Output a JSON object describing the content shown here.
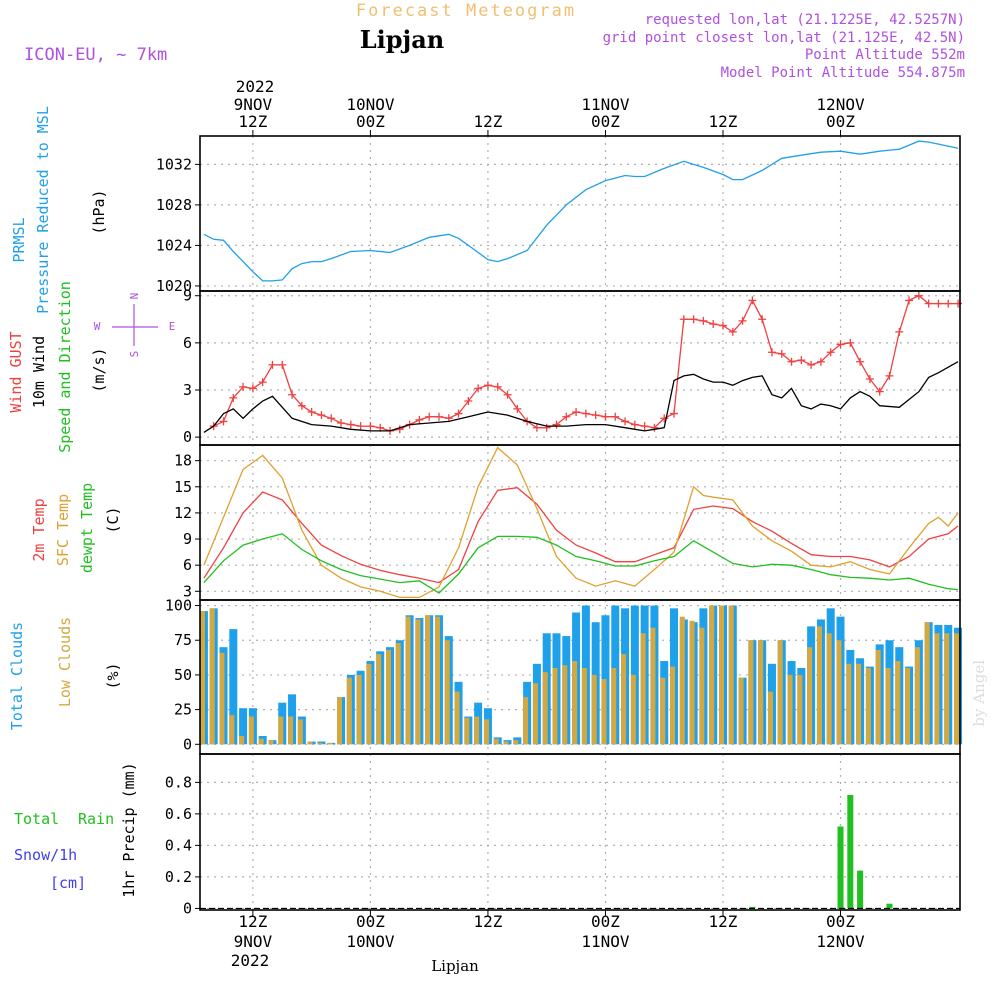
{
  "header": {
    "super_title": "Forecast Meteogram",
    "station": "Lipjan",
    "model": "ICON-EU, ~ 7km",
    "requested": "requested lon,lat (21.1225E, 42.5257N)",
    "gridpoint": "grid point closest lon,lat (21.125E, 42.5N)",
    "point_altitude": "Point Altitude 552m",
    "model_altitude": "Model Point Altitude 554.875m",
    "footer": "Lipjan",
    "watermark": "by Angel"
  },
  "time_axis": {
    "year": "2022",
    "ticks": [
      {
        "t": 12,
        "hour": "12Z",
        "day": "9NOV"
      },
      {
        "t": 24,
        "hour": "00Z",
        "day": "10NOV"
      },
      {
        "t": 36,
        "hour": "12Z",
        "day": ""
      },
      {
        "t": 48,
        "hour": "00Z",
        "day": "11NOV"
      },
      {
        "t": 60,
        "hour": "12Z",
        "day": ""
      },
      {
        "t": 72,
        "hour": "00Z",
        "day": "12NOV"
      }
    ]
  },
  "panel_labels": {
    "prmsl": [
      "PRMSL",
      "Pressure Reduced to MSL"
    ],
    "prmsl_unit": "(hPa)",
    "wind": [
      "Wind GUST",
      "10m Wind",
      "Speed and Direction"
    ],
    "wind_unit": "(m/s)",
    "compass": {
      "n": "N",
      "s": "S",
      "w": "W",
      "e": "E"
    },
    "temp": [
      "2m Temp",
      "SFC Temp",
      "dewpt Temp"
    ],
    "temp_unit": "(C)",
    "cloud": [
      "Total Clouds",
      "Low Clouds"
    ],
    "cloud_unit": "(%)",
    "precip_left": [
      "Total",
      "Rain",
      "Snow/1h",
      "[cm]"
    ],
    "precip_axis": "1hr Precip (mm)"
  },
  "colors": {
    "prmsl": "#1fa0ea",
    "gust": "#f04040",
    "wind": "#000000",
    "temp2m": "#f04040",
    "sfc": "#e0a030",
    "dewpt": "#20c020",
    "total_cloud": "#1fa0ea",
    "low_cloud": "#d4a840",
    "rain": "#20c020",
    "snow": "#4040f0",
    "title": "#f0c070",
    "info": "#b050e0"
  },
  "chart_data": [
    {
      "type": "line",
      "name": "prmsl",
      "x_unit": "hours from 9NOV 00Z",
      "ylabel": "(hPa)",
      "ylim": [
        1019.5,
        1034.8
      ],
      "yticks": [
        1020,
        1024,
        1028,
        1032
      ],
      "series": [
        {
          "name": "PRMSL",
          "color": "#1fa0ea",
          "x": [
            7,
            8,
            9,
            10,
            12,
            13,
            14,
            15,
            16,
            17,
            18,
            19,
            20,
            22,
            24,
            26,
            28,
            30,
            32,
            33,
            34,
            36,
            37,
            38,
            40,
            42,
            44,
            46,
            48,
            50,
            51,
            52,
            54,
            56,
            58,
            60,
            61,
            62,
            64,
            66,
            68,
            70,
            72,
            74,
            76,
            78,
            80,
            81,
            82,
            84
          ],
          "values": [
            1025.1,
            1024.6,
            1024.5,
            1023.4,
            1021.4,
            1020.5,
            1020.5,
            1020.6,
            1021.7,
            1022.2,
            1022.4,
            1022.4,
            1022.7,
            1023.4,
            1023.5,
            1023.3,
            1024.0,
            1024.8,
            1025.1,
            1024.7,
            1024.0,
            1022.6,
            1022.4,
            1022.7,
            1023.5,
            1026.0,
            1028.0,
            1029.5,
            1030.4,
            1030.9,
            1030.8,
            1030.8,
            1031.6,
            1032.3,
            1031.7,
            1031.0,
            1030.5,
            1030.5,
            1031.4,
            1032.6,
            1032.9,
            1033.2,
            1033.3,
            1033.0,
            1033.3,
            1033.5,
            1034.3,
            1034.2,
            1034.0,
            1033.6
          ]
        }
      ]
    },
    {
      "type": "line",
      "name": "wind",
      "x_unit": "hours from 9NOV 00Z",
      "ylabel": "(m/s)",
      "ylim": [
        -0.5,
        9.3
      ],
      "yticks": [
        0,
        3,
        6,
        9
      ],
      "series": [
        {
          "name": "Wind GUST",
          "color": "#f04040",
          "marker": "+",
          "x": [
            8,
            9,
            10,
            11,
            12,
            13,
            14,
            15,
            16,
            17,
            18,
            19,
            20,
            21,
            22,
            23,
            24,
            25,
            26,
            27,
            28,
            29,
            30,
            31,
            32,
            33,
            34,
            35,
            36,
            37,
            38,
            39,
            40,
            41,
            42,
            43,
            44,
            45,
            46,
            47,
            48,
            49,
            50,
            51,
            52,
            53,
            54,
            55,
            56,
            57,
            58,
            59,
            60,
            61,
            62,
            63,
            64,
            65,
            66,
            67,
            68,
            69,
            70,
            71,
            72,
            73,
            74,
            75,
            76,
            77,
            78,
            79,
            80,
            81,
            82,
            83,
            84
          ],
          "values": [
            0.7,
            1.0,
            2.5,
            3.2,
            3.1,
            3.5,
            4.6,
            4.6,
            2.7,
            2.0,
            1.6,
            1.4,
            1.2,
            0.9,
            0.8,
            0.7,
            0.7,
            0.6,
            0.4,
            0.5,
            0.8,
            1.1,
            1.3,
            1.3,
            1.2,
            1.5,
            2.3,
            3.1,
            3.3,
            3.2,
            2.7,
            1.8,
            1.0,
            0.6,
            0.6,
            0.8,
            1.3,
            1.6,
            1.5,
            1.4,
            1.3,
            1.3,
            1.0,
            0.8,
            0.7,
            0.6,
            1.2,
            1.5,
            7.5,
            7.5,
            7.4,
            7.2,
            7.1,
            6.7,
            7.4,
            8.7,
            7.5,
            5.4,
            5.3,
            4.8,
            4.9,
            4.6,
            4.8,
            5.4,
            5.9,
            6.0,
            4.8,
            3.7,
            2.9,
            3.9,
            6.7,
            8.7,
            9.0,
            8.5,
            8.5,
            8.5,
            8.5
          ]
        },
        {
          "name": "10m Wind",
          "color": "#000000",
          "x": [
            7,
            8,
            9,
            10,
            11,
            12,
            13,
            14,
            16,
            18,
            20,
            22,
            24,
            26,
            28,
            30,
            32,
            34,
            36,
            38,
            40,
            42,
            44,
            46,
            48,
            50,
            51,
            52,
            53,
            54,
            55,
            56,
            57,
            58,
            59,
            60,
            61,
            62,
            63,
            64,
            65,
            66,
            67,
            68,
            69,
            70,
            71,
            72,
            73,
            74,
            75,
            76,
            78,
            80,
            81,
            82,
            84
          ],
          "values": [
            0.3,
            0.7,
            1.5,
            1.8,
            1.2,
            1.8,
            2.3,
            2.6,
            1.2,
            0.8,
            0.7,
            0.5,
            0.4,
            0.4,
            0.8,
            0.9,
            1.0,
            1.3,
            1.6,
            1.4,
            1.0,
            0.7,
            0.7,
            0.8,
            0.8,
            0.6,
            0.5,
            0.4,
            0.5,
            0.6,
            3.6,
            3.9,
            4.0,
            3.7,
            3.5,
            3.5,
            3.3,
            3.6,
            3.8,
            3.9,
            2.7,
            2.5,
            3.1,
            2.0,
            1.8,
            2.1,
            2.0,
            1.8,
            2.5,
            2.9,
            2.6,
            2.0,
            1.9,
            2.9,
            3.8,
            4.1,
            4.8
          ]
        }
      ]
    },
    {
      "type": "line",
      "name": "temperature",
      "x_unit": "hours from 9NOV 00Z",
      "ylabel": "(C)",
      "ylim": [
        2.0,
        19.8
      ],
      "yticks": [
        3,
        6,
        9,
        12,
        15,
        18
      ],
      "series": [
        {
          "name": "2m Temp",
          "color": "#f04040",
          "x": [
            7,
            9,
            11,
            13,
            15,
            17,
            19,
            21,
            23,
            25,
            27,
            29,
            31,
            33,
            35,
            37,
            39,
            41,
            43,
            45,
            47,
            49,
            51,
            53,
            55,
            57,
            59,
            61,
            63,
            65,
            67,
            69,
            71,
            73,
            75,
            77,
            79,
            81,
            83,
            84
          ],
          "values": [
            4.5,
            8.0,
            12.0,
            14.4,
            13.5,
            10.8,
            8.3,
            7.1,
            6.1,
            5.4,
            4.9,
            4.5,
            4.0,
            5.5,
            11.0,
            14.6,
            14.9,
            13.0,
            10.0,
            8.3,
            7.4,
            6.4,
            6.4,
            7.2,
            8.0,
            12.4,
            12.8,
            12.5,
            11.0,
            9.9,
            8.5,
            7.2,
            7.0,
            7.0,
            6.6,
            5.8,
            7.0,
            9.0,
            9.6,
            10.5
          ]
        },
        {
          "name": "SFC Temp",
          "color": "#e0a030",
          "x": [
            7,
            9,
            11,
            13,
            15,
            17,
            19,
            21,
            23,
            25,
            27,
            29,
            31,
            33,
            35,
            37,
            39,
            41,
            43,
            45,
            47,
            49,
            51,
            53,
            55,
            57,
            58,
            59,
            61,
            63,
            65,
            67,
            69,
            71,
            73,
            75,
            77,
            79,
            81,
            82,
            83,
            84
          ],
          "values": [
            6.0,
            11.5,
            17.0,
            18.6,
            16.0,
            10.0,
            6.0,
            4.5,
            3.5,
            3.0,
            2.3,
            2.3,
            3.5,
            8.0,
            15.0,
            19.5,
            17.5,
            12.5,
            7.0,
            4.5,
            3.6,
            4.2,
            3.6,
            5.5,
            7.5,
            15.0,
            14.0,
            13.8,
            13.5,
            10.5,
            8.8,
            7.6,
            6.0,
            5.8,
            6.4,
            5.5,
            5.0,
            8.0,
            10.8,
            11.5,
            10.5,
            12.0
          ]
        },
        {
          "name": "dewpt Temp",
          "color": "#20c020",
          "x": [
            7,
            9,
            11,
            13,
            15,
            17,
            19,
            21,
            23,
            25,
            27,
            29,
            31,
            33,
            35,
            37,
            39,
            41,
            43,
            45,
            47,
            49,
            51,
            53,
            55,
            57,
            59,
            61,
            63,
            65,
            67,
            69,
            71,
            73,
            75,
            77,
            79,
            81,
            83,
            84
          ],
          "values": [
            4.0,
            6.5,
            8.3,
            9.0,
            9.6,
            7.8,
            6.5,
            5.5,
            4.8,
            4.4,
            4.0,
            4.2,
            2.8,
            5.0,
            8.0,
            9.3,
            9.3,
            9.2,
            8.3,
            7.0,
            6.5,
            5.9,
            5.9,
            6.5,
            7.0,
            8.8,
            7.5,
            6.2,
            5.8,
            6.1,
            6.0,
            5.5,
            4.9,
            4.6,
            4.5,
            4.3,
            4.5,
            3.8,
            3.3,
            3.2
          ]
        }
      ]
    },
    {
      "type": "bar",
      "name": "clouds",
      "x_unit": "hours from 9NOV 00Z",
      "ylabel": "(%)",
      "ylim": [
        -7,
        104
      ],
      "yticks": [
        0,
        25,
        50,
        75,
        100
      ],
      "x": [
        7,
        8,
        9,
        10,
        11,
        12,
        13,
        14,
        15,
        16,
        17,
        18,
        19,
        20,
        21,
        22,
        23,
        24,
        25,
        26,
        27,
        28,
        29,
        30,
        31,
        32,
        33,
        34,
        35,
        36,
        37,
        38,
        39,
        40,
        41,
        42,
        43,
        44,
        45,
        46,
        47,
        48,
        49,
        50,
        51,
        52,
        53,
        54,
        55,
        56,
        57,
        58,
        59,
        60,
        61,
        62,
        63,
        64,
        65,
        66,
        67,
        68,
        69,
        70,
        71,
        72,
        73,
        74,
        75,
        76,
        77,
        78,
        79,
        80,
        81,
        82,
        83,
        84
      ],
      "series": [
        {
          "name": "Total Clouds",
          "color": "#1fa0ea",
          "values": [
            96,
            98,
            70,
            83,
            26,
            26,
            6,
            3,
            30,
            36,
            20,
            2,
            2,
            1,
            34,
            50,
            53,
            60,
            67,
            70,
            75,
            93,
            91,
            93,
            93,
            78,
            45,
            20,
            30,
            26,
            5,
            3,
            5,
            45,
            58,
            80,
            80,
            78,
            95,
            100,
            88,
            93,
            100,
            98,
            100,
            100,
            100,
            60,
            98,
            90,
            88,
            98,
            100,
            100,
            100,
            48,
            75,
            75,
            58,
            75,
            60,
            55,
            85,
            90,
            98,
            92,
            68,
            62,
            56,
            72,
            75,
            70,
            56,
            75,
            88,
            86,
            86,
            84
          ]
        },
        {
          "name": "Low Clouds",
          "color": "#d4a840",
          "values": [
            96,
            98,
            66,
            21,
            6,
            20,
            4,
            3,
            20,
            20,
            18,
            2,
            1,
            1,
            34,
            48,
            50,
            58,
            65,
            68,
            73,
            92,
            90,
            93,
            92,
            75,
            38,
            19,
            20,
            18,
            4,
            2,
            3,
            34,
            44,
            52,
            55,
            57,
            60,
            55,
            50,
            47,
            55,
            65,
            50,
            80,
            84,
            48,
            56,
            92,
            89,
            84,
            100,
            100,
            100,
            48,
            75,
            75,
            38,
            75,
            50,
            50,
            70,
            85,
            80,
            75,
            58,
            58,
            55,
            68,
            55,
            60,
            55,
            70,
            88,
            80,
            80,
            80
          ]
        }
      ]
    },
    {
      "type": "bar",
      "name": "precipitation",
      "x_unit": "hours from 9NOV 00Z",
      "ylabel": "1hr Precip (mm)",
      "ylim": [
        -0.01,
        0.98
      ],
      "yticks": [
        0,
        0.2,
        0.4,
        0.6,
        0.8
      ],
      "series": [
        {
          "name": "Total Rain",
          "color": "#20c020",
          "x": [
            63,
            72,
            73,
            74,
            77
          ],
          "values": [
            0.01,
            0.52,
            0.72,
            0.24,
            0.03
          ]
        }
      ]
    }
  ]
}
